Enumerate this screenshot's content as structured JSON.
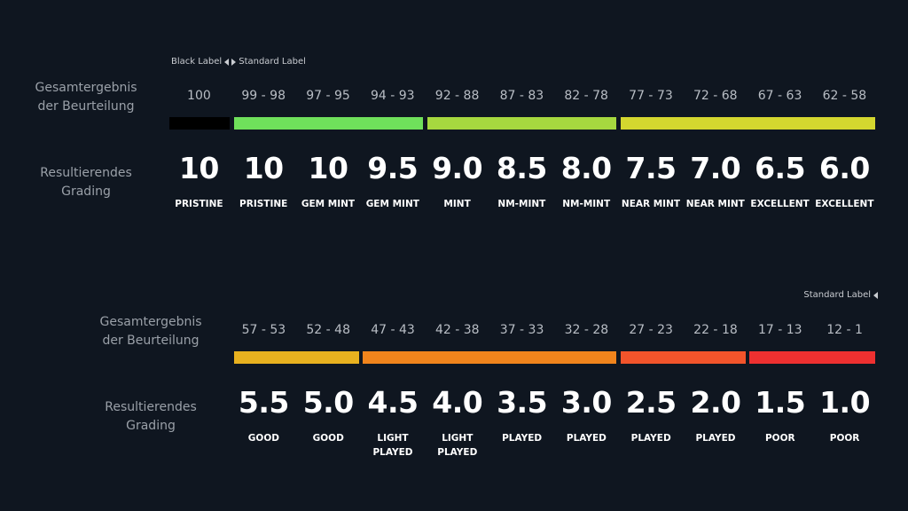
{
  "legend_top": {
    "left_label": "Black Label",
    "right_label": "Standard Label"
  },
  "legend_bottom": {
    "label": "Standard Label"
  },
  "top_section": {
    "score_label": [
      "Gesamtergebnis",
      "der Beurteilung"
    ],
    "grade_label": [
      "Resultierendes",
      "Grading"
    ],
    "ranges": [
      "100",
      "99 - 98",
      "97 - 95",
      "94 - 93",
      "92 - 88",
      "87 - 83",
      "82 - 78",
      "77 - 73",
      "72 - 68",
      "67 - 63",
      "62 - 58"
    ],
    "grades": [
      "10",
      "10",
      "10",
      "9.5",
      "9.0",
      "8.5",
      "8.0",
      "7.5",
      "7.0",
      "6.5",
      "6.0"
    ],
    "names": [
      [
        "PRISTINE"
      ],
      [
        "PRISTINE"
      ],
      [
        "GEM MINT"
      ],
      [
        "GEM MINT"
      ],
      [
        "MINT"
      ],
      [
        "NM-MINT"
      ],
      [
        "NM-MINT"
      ],
      [
        "NEAR MINT"
      ],
      [
        "NEAR MINT"
      ],
      [
        "EXCELLENT"
      ],
      [
        "EXCELLENT"
      ]
    ],
    "bar_colors": [
      "#000000",
      "#6fe05b",
      "#a6d83f",
      "#d4d72f"
    ]
  },
  "bottom_section": {
    "score_label": [
      "Gesamtergebnis",
      "der Beurteilung"
    ],
    "grade_label": [
      "Resultierendes",
      "Grading"
    ],
    "ranges": [
      "57 - 53",
      "52 - 48",
      "47 - 43",
      "42 - 38",
      "37 - 33",
      "32 - 28",
      "27 - 23",
      "22 - 18",
      "17 - 13",
      "12 - 1"
    ],
    "grades": [
      "5.5",
      "5.0",
      "4.5",
      "4.0",
      "3.5",
      "3.0",
      "2.5",
      "2.0",
      "1.5",
      "1.0"
    ],
    "names": [
      [
        "GOOD"
      ],
      [
        "GOOD"
      ],
      [
        "LIGHT",
        "PLAYED"
      ],
      [
        "LIGHT",
        "PLAYED"
      ],
      [
        "PLAYED"
      ],
      [
        "PLAYED"
      ],
      [
        "PLAYED"
      ],
      [
        "PLAYED"
      ],
      [
        "POOR"
      ],
      [
        "POOR"
      ]
    ],
    "bar_colors": [
      "#e8b11f",
      "#f0841c",
      "#f2542b",
      "#ee3030"
    ]
  }
}
